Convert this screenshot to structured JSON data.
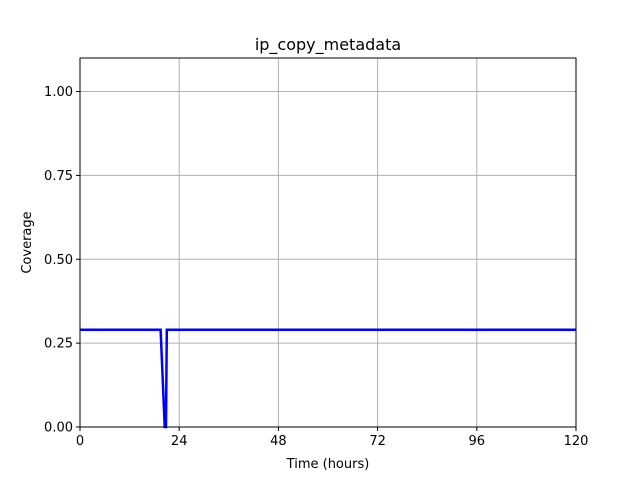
{
  "chart_data": {
    "type": "line",
    "title": "ip_copy_metadata",
    "xlabel": "Time (hours)",
    "ylabel": "Coverage",
    "xlim": [
      0,
      120
    ],
    "ylim": [
      0,
      1.1
    ],
    "x_ticks": [
      0,
      24,
      48,
      72,
      96,
      120
    ],
    "x_tick_labels": [
      "0",
      "24",
      "48",
      "72",
      "96",
      "120"
    ],
    "y_ticks": [
      0,
      0.25,
      0.5,
      0.75,
      1.0
    ],
    "y_tick_labels": [
      "0.00",
      "0.25",
      "0.50",
      "0.75",
      "1.00"
    ],
    "grid": true,
    "series": [
      {
        "color": "#0000ff",
        "x": [
          0,
          19.5,
          20.5,
          20.8,
          21.0,
          120
        ],
        "y": [
          0.29,
          0.29,
          0.0,
          0.0,
          0.29,
          0.29
        ]
      }
    ]
  }
}
